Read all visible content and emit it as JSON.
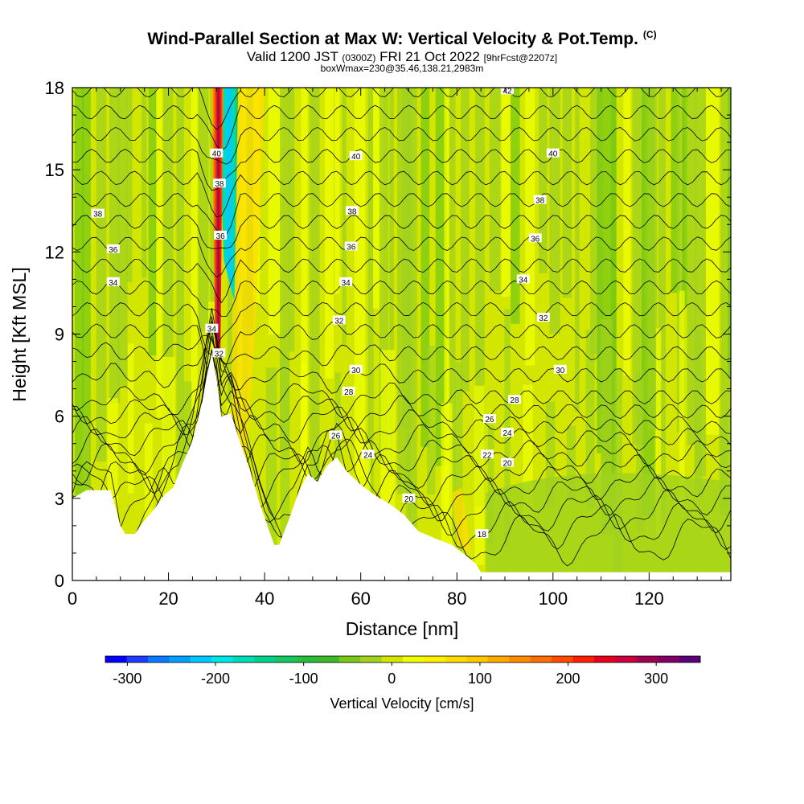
{
  "header": {
    "title": "Wind-Parallel Section at Max W: Vertical Velocity & Pot.Temp.",
    "title_mark": "(C)",
    "valid_a": "Valid 1200 JST",
    "valid_b": "(0300Z)",
    "valid_c": "FRI 21 Oct 2022",
    "valid_d": "[9hrFcst@2207z]",
    "box": "boxWmax=230@35.46,138.21,2983m"
  },
  "chart_data": {
    "type": "heatmap",
    "xlabel": "Distance [nm]",
    "ylabel": "Height [Kft MSL]",
    "xlim": [
      0,
      137
    ],
    "ylim": [
      0,
      18
    ],
    "x_ticks": [
      0,
      20,
      40,
      60,
      80,
      100,
      120
    ],
    "y_ticks": [
      0,
      3,
      6,
      9,
      12,
      15,
      18
    ],
    "terrain_kft": [
      [
        0,
        3.0
      ],
      [
        3,
        3.3
      ],
      [
        8,
        3.3
      ],
      [
        10,
        2.0
      ],
      [
        11,
        1.7
      ],
      [
        13,
        1.7
      ],
      [
        15,
        2.2
      ],
      [
        17,
        2.6
      ],
      [
        19,
        3.1
      ],
      [
        21,
        3.4
      ],
      [
        23,
        4.3
      ],
      [
        25,
        5.1
      ],
      [
        27,
        6.5
      ],
      [
        28,
        7.5
      ],
      [
        29,
        8.3
      ],
      [
        30,
        7.4
      ],
      [
        31,
        6.0
      ],
      [
        33,
        6.1
      ],
      [
        35,
        5.0
      ],
      [
        37,
        4.0
      ],
      [
        39,
        2.8
      ],
      [
        41,
        1.8
      ],
      [
        42,
        1.3
      ],
      [
        43,
        1.3
      ],
      [
        45,
        2.2
      ],
      [
        47,
        3.2
      ],
      [
        49,
        3.9
      ],
      [
        51,
        3.6
      ],
      [
        53,
        4.2
      ],
      [
        55,
        4.5
      ],
      [
        57,
        4.0
      ],
      [
        60,
        3.5
      ],
      [
        63,
        3.1
      ],
      [
        66,
        2.8
      ],
      [
        69,
        2.4
      ],
      [
        72,
        1.8
      ],
      [
        76,
        1.5
      ],
      [
        79,
        1.3
      ],
      [
        82,
        0.9
      ],
      [
        84,
        0.6
      ],
      [
        85,
        0.3
      ],
      [
        137,
        0.3
      ]
    ],
    "theta_contours": [
      {
        "value": 18,
        "label_at_x": 85.2,
        "label_at_y": 1.7
      },
      {
        "value": 20,
        "label_at_x": 70.0,
        "label_at_y": 3.0
      },
      {
        "value": 20,
        "label_at_x": 90.5,
        "label_at_y": 4.3
      },
      {
        "value": 22,
        "label_at_x": 86.3,
        "label_at_y": 4.6
      },
      {
        "value": 24,
        "label_at_x": 61.5,
        "label_at_y": 4.6
      },
      {
        "value": 24,
        "label_at_x": 90.5,
        "label_at_y": 5.4
      },
      {
        "value": 26,
        "label_at_x": 54.8,
        "label_at_y": 5.3
      },
      {
        "value": 26,
        "label_at_x": 86.8,
        "label_at_y": 5.9
      },
      {
        "value": 28,
        "label_at_x": 57.5,
        "label_at_y": 6.9
      },
      {
        "value": 28,
        "label_at_x": 92.0,
        "label_at_y": 6.6
      },
      {
        "value": 30,
        "label_at_x": 59.0,
        "label_at_y": 7.7
      },
      {
        "value": 30,
        "label_at_x": 101.5,
        "label_at_y": 7.7
      },
      {
        "value": 32,
        "label_at_x": 30.5,
        "label_at_y": 8.3
      },
      {
        "value": 32,
        "label_at_x": 55.5,
        "label_at_y": 9.5
      },
      {
        "value": 32,
        "label_at_x": 98.0,
        "label_at_y": 9.6
      },
      {
        "value": 34,
        "label_at_x": 8.5,
        "label_at_y": 10.9
      },
      {
        "value": 34,
        "label_at_x": 29.0,
        "label_at_y": 9.2
      },
      {
        "value": 34,
        "label_at_x": 56.9,
        "label_at_y": 10.9
      },
      {
        "value": 34,
        "label_at_x": 93.8,
        "label_at_y": 11.0
      },
      {
        "value": 36,
        "label_at_x": 8.5,
        "label_at_y": 12.1
      },
      {
        "value": 36,
        "label_at_x": 58.0,
        "label_at_y": 12.2
      },
      {
        "value": 36,
        "label_at_x": 96.3,
        "label_at_y": 12.5
      },
      {
        "value": 36,
        "label_at_x": 30.8,
        "label_at_y": 12.6
      },
      {
        "value": 38,
        "label_at_x": 5.3,
        "label_at_y": 13.4
      },
      {
        "value": 38,
        "label_at_x": 30.6,
        "label_at_y": 14.5
      },
      {
        "value": 38,
        "label_at_x": 58.2,
        "label_at_y": 13.5
      },
      {
        "value": 38,
        "label_at_x": 97.3,
        "label_at_y": 13.9
      },
      {
        "value": 40,
        "label_at_x": 30.0,
        "label_at_y": 15.6
      },
      {
        "value": 40,
        "label_at_x": 59.0,
        "label_at_y": 15.5
      },
      {
        "value": 40,
        "label_at_x": 100.0,
        "label_at_y": 15.6
      },
      {
        "value": 42,
        "label_at_x": 90.5,
        "label_at_y": 17.9
      }
    ],
    "updraft_core": {
      "x": 30.3,
      "y_from": 8.3,
      "y_to": 18,
      "w_max_cm_s": 300,
      "band": "red/maroon"
    },
    "downdraft_core": {
      "x": 32.5,
      "y_from": 10.2,
      "y_to": 18,
      "w_min_cm_s": -220,
      "band": "cyan/blue"
    },
    "colorbar": {
      "label": "Vertical Velocity [cm/s]",
      "ticks": [
        "-300",
        "-200",
        "-100",
        "0",
        "100",
        "200",
        "300"
      ],
      "range": [
        -325,
        350
      ],
      "colors": [
        "#0000ff",
        "#1e3cff",
        "#0a78ff",
        "#00a0ff",
        "#00c8ff",
        "#00e6e6",
        "#00dcb4",
        "#00d28c",
        "#14c864",
        "#28be3c",
        "#3cb928",
        "#78c814",
        "#a0d21e",
        "#d2e600",
        "#f0ff00",
        "#fff000",
        "#ffdc00",
        "#ffc800",
        "#ffaa00",
        "#ff8c00",
        "#ff6e00",
        "#ff4b00",
        "#ff1e00",
        "#e6001e",
        "#c8003c",
        "#a00050",
        "#820064",
        "#5a0078"
      ]
    },
    "background_field": {
      "neutral_color": "#d2e600",
      "weak_down_color": "#a0d21e",
      "moderate_down_color": "#78c814",
      "weak_up_color": "#f0ff00",
      "strong_up_color": "#ffdc00"
    }
  }
}
